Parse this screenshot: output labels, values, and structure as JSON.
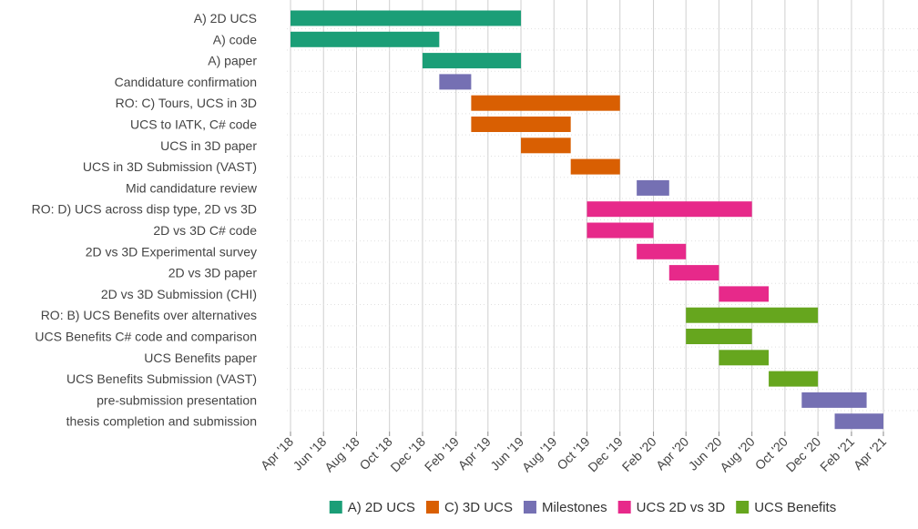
{
  "chart_data": {
    "type": "bar",
    "orientation": "horizontal-gantt",
    "title": "",
    "xlabel": "",
    "ylabel": "",
    "x_axis": {
      "type": "date",
      "range": [
        "2018-04-01",
        "2021-04-01"
      ],
      "tick_labels": [
        "Apr '18",
        "Jun '18",
        "Aug '18",
        "Oct '18",
        "Dec '18",
        "Feb '19",
        "Apr '19",
        "Jun '19",
        "Aug '19",
        "Oct '19",
        "Dec '19",
        "Feb '20",
        "Apr '20",
        "Jun '20",
        "Aug '20",
        "Oct '20",
        "Dec '20",
        "Feb '21",
        "Apr '21"
      ],
      "tick_dates": [
        "2018-04-01",
        "2018-06-01",
        "2018-08-01",
        "2018-10-01",
        "2018-12-01",
        "2019-02-01",
        "2019-04-01",
        "2019-06-01",
        "2019-08-01",
        "2019-10-01",
        "2019-12-01",
        "2020-02-01",
        "2020-04-01",
        "2020-06-01",
        "2020-08-01",
        "2020-10-01",
        "2020-12-01",
        "2021-02-01",
        "2021-04-01"
      ],
      "grid": true
    },
    "legend": {
      "placement": "bottom",
      "entries": [
        {
          "name": "A) 2D UCS",
          "color": "#1b9e77"
        },
        {
          "name": "C) 3D UCS",
          "color": "#d95f02"
        },
        {
          "name": "Milestones",
          "color": "#7570b3"
        },
        {
          "name": "UCS 2D vs 3D",
          "color": "#e7298a"
        },
        {
          "name": "UCS Benefits",
          "color": "#66a61e"
        }
      ]
    },
    "tasks": [
      {
        "label": "A) 2D UCS",
        "start": "2018-04-01",
        "end": "2019-06-01",
        "series": "A) 2D UCS"
      },
      {
        "label": "A) code",
        "start": "2018-04-01",
        "end": "2019-01-01",
        "series": "A) 2D UCS"
      },
      {
        "label": "A) paper",
        "start": "2018-12-01",
        "end": "2019-06-01",
        "series": "A) 2D UCS"
      },
      {
        "label": "Candidature confirmation",
        "start": "2019-01-01",
        "end": "2019-03-01",
        "series": "Milestones"
      },
      {
        "label": "RO: C) Tours, UCS in 3D",
        "start": "2019-03-01",
        "end": "2019-12-01",
        "series": "C) 3D UCS"
      },
      {
        "label": "UCS to IATK, C# code",
        "start": "2019-03-01",
        "end": "2019-09-01",
        "series": "C) 3D UCS"
      },
      {
        "label": "UCS in 3D paper",
        "start": "2019-06-01",
        "end": "2019-09-01",
        "series": "C) 3D UCS"
      },
      {
        "label": "UCS in 3D Submission (VAST)",
        "start": "2019-09-01",
        "end": "2019-12-01",
        "series": "C) 3D UCS"
      },
      {
        "label": "Mid candidature review",
        "start": "2020-01-01",
        "end": "2020-03-01",
        "series": "Milestones"
      },
      {
        "label": "RO: D) UCS across disp type, 2D vs 3D",
        "start": "2019-10-01",
        "end": "2020-08-01",
        "series": "UCS 2D vs 3D"
      },
      {
        "label": "2D vs 3D C# code",
        "start": "2019-10-01",
        "end": "2020-02-01",
        "series": "UCS 2D vs 3D"
      },
      {
        "label": "2D vs 3D Experimental survey",
        "start": "2020-01-01",
        "end": "2020-04-01",
        "series": "UCS 2D vs 3D"
      },
      {
        "label": "2D vs 3D paper",
        "start": "2020-03-01",
        "end": "2020-06-01",
        "series": "UCS 2D vs 3D"
      },
      {
        "label": "2D vs 3D Submission (CHI)",
        "start": "2020-06-01",
        "end": "2020-09-01",
        "series": "UCS 2D vs 3D"
      },
      {
        "label": "RO: B) UCS Benefits over alternatives",
        "start": "2020-04-01",
        "end": "2020-12-01",
        "series": "UCS Benefits"
      },
      {
        "label": "UCS Benefits C# code and comparison",
        "start": "2020-04-01",
        "end": "2020-08-01",
        "series": "UCS Benefits"
      },
      {
        "label": "UCS Benefits paper",
        "start": "2020-06-01",
        "end": "2020-09-01",
        "series": "UCS Benefits"
      },
      {
        "label": "UCS Benefits Submission (VAST)",
        "start": "2020-09-01",
        "end": "2020-12-01",
        "series": "UCS Benefits"
      },
      {
        "label": "pre-submission presentation",
        "start": "2020-11-01",
        "end": "2021-03-01",
        "series": "Milestones"
      },
      {
        "label": "thesis completion and submission",
        "start": "2021-01-01",
        "end": "2021-04-01",
        "series": "Milestones"
      }
    ]
  }
}
